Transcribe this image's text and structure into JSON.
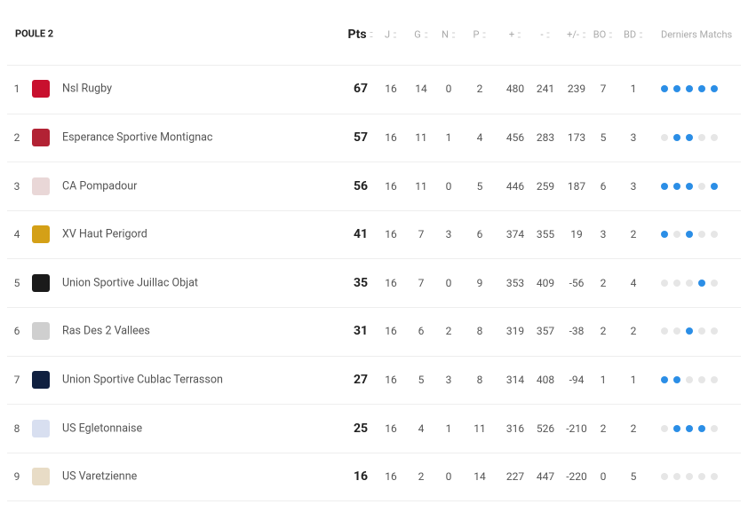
{
  "header": {
    "title": "POULE 2"
  },
  "table": {
    "columns": [
      "Pts",
      "J",
      "G",
      "N",
      "P",
      "+",
      "-",
      "+/-",
      "BO",
      "BD",
      "Derniers Matchs"
    ],
    "rows": [
      {
        "rank": 1,
        "team": "Nsl Rugby",
        "pts": 67,
        "j": 16,
        "g": 14,
        "n": 0,
        "p": 2,
        "plus": 480,
        "minus": 241,
        "diff": 239,
        "bo": 7,
        "bd": 1,
        "form": [
          1,
          1,
          1,
          1,
          1
        ]
      },
      {
        "rank": 2,
        "team": "Esperance Sportive Montignac",
        "pts": 57,
        "j": 16,
        "g": 11,
        "n": 1,
        "p": 4,
        "plus": 456,
        "minus": 283,
        "diff": 173,
        "bo": 5,
        "bd": 3,
        "form": [
          0,
          1,
          1,
          0,
          0
        ]
      },
      {
        "rank": 3,
        "team": "CA Pompadour",
        "pts": 56,
        "j": 16,
        "g": 11,
        "n": 0,
        "p": 5,
        "plus": 446,
        "minus": 259,
        "diff": 187,
        "bo": 6,
        "bd": 3,
        "form": [
          1,
          1,
          1,
          0,
          1
        ]
      },
      {
        "rank": 4,
        "team": "XV Haut Perigord",
        "pts": 41,
        "j": 16,
        "g": 7,
        "n": 3,
        "p": 6,
        "plus": 374,
        "minus": 355,
        "diff": 19,
        "bo": 3,
        "bd": 2,
        "form": [
          1,
          0,
          1,
          0,
          0
        ]
      },
      {
        "rank": 5,
        "team": "Union Sportive Juillac Objat",
        "pts": 35,
        "j": 16,
        "g": 7,
        "n": 0,
        "p": 9,
        "plus": 353,
        "minus": 409,
        "diff": -56,
        "bo": 2,
        "bd": 4,
        "form": [
          0,
          0,
          0,
          1,
          0
        ]
      },
      {
        "rank": 6,
        "team": "Ras Des 2 Vallees",
        "pts": 31,
        "j": 16,
        "g": 6,
        "n": 2,
        "p": 8,
        "plus": 319,
        "minus": 357,
        "diff": -38,
        "bo": 2,
        "bd": 2,
        "form": [
          0,
          0,
          1,
          0,
          0
        ]
      },
      {
        "rank": 7,
        "team": "Union Sportive Cublac Terrasson",
        "pts": 27,
        "j": 16,
        "g": 5,
        "n": 3,
        "p": 8,
        "plus": 314,
        "minus": 408,
        "diff": -94,
        "bo": 1,
        "bd": 1,
        "form": [
          1,
          1,
          0,
          0,
          0
        ]
      },
      {
        "rank": 8,
        "team": "US Egletonnaise",
        "pts": 25,
        "j": 16,
        "g": 4,
        "n": 1,
        "p": 11,
        "plus": 316,
        "minus": 526,
        "diff": -210,
        "bo": 2,
        "bd": 2,
        "form": [
          0,
          1,
          1,
          1,
          0
        ]
      },
      {
        "rank": 9,
        "team": "US Varetzienne",
        "pts": 16,
        "j": 16,
        "g": 2,
        "n": 0,
        "p": 14,
        "plus": 227,
        "minus": 447,
        "diff": -220,
        "bo": 0,
        "bd": 5,
        "form": [
          0,
          0,
          0,
          0,
          0
        ]
      }
    ]
  }
}
